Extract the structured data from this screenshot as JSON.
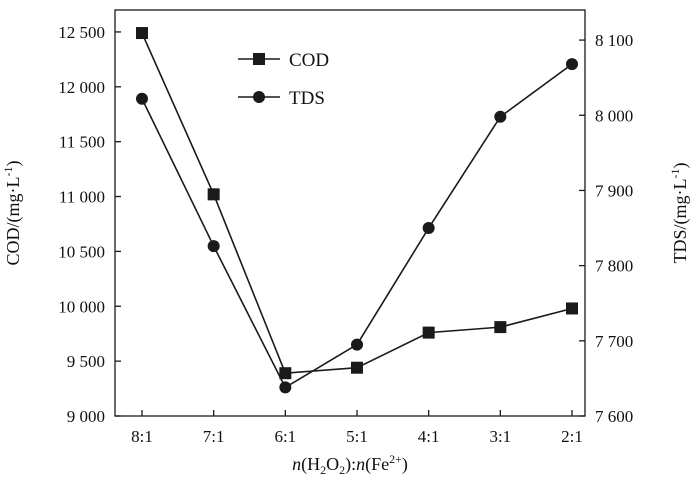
{
  "chart_data": {
    "type": "line",
    "categories": [
      "8:1",
      "7:1",
      "6:1",
      "5:1",
      "4:1",
      "3:1",
      "2:1"
    ],
    "xlabel": "n(H₂O₂):n(Fe²⁺)",
    "xlabel_parts": {
      "n1": "n",
      "open1": "(H",
      "sub1": "2",
      "mid1": "O",
      "sub2": "2",
      "close1": "):",
      "n2": "n",
      "open2": "(Fe",
      "sup1": "2+",
      "close2": ")"
    },
    "ylabel_left": "COD/(mg·L⁻¹)",
    "ylabel_left_parts": {
      "main": "COD/(mg·L",
      "sup": "-1",
      "end": ")"
    },
    "ylabel_right": "TDS/(mg·L⁻¹)",
    "ylabel_right_parts": {
      "main": "TDS/(mg·L",
      "sup": "-1",
      "end": ")"
    },
    "ylim_left": [
      9000,
      12700
    ],
    "yticks_left": [
      9000,
      9500,
      10000,
      10500,
      11000,
      11500,
      12000,
      12500
    ],
    "ytick_labels_left": [
      "9 000",
      "9 500",
      "10 000",
      "10 500",
      "11 000",
      "11 500",
      "12 000",
      "12 500"
    ],
    "ylim_right": [
      7600,
      8140
    ],
    "yticks_right": [
      7600,
      7700,
      7800,
      7900,
      8000,
      8100
    ],
    "ytick_labels_right": [
      "7 600",
      "7 700",
      "7 800",
      "7 900",
      "8 000",
      "8 100"
    ],
    "series": [
      {
        "name": "COD",
        "axis": "left",
        "marker": "square",
        "values": [
          12490,
          11020,
          9390,
          9440,
          9760,
          9810,
          9980
        ]
      },
      {
        "name": "TDS",
        "axis": "right",
        "marker": "circle",
        "values": [
          8022,
          7826,
          7638,
          7695,
          7850,
          7998,
          8068
        ]
      }
    ],
    "legend": "top-center",
    "grid": false,
    "colors": {
      "line": "#1a1a1a",
      "marker": "#1a1a1a"
    }
  }
}
